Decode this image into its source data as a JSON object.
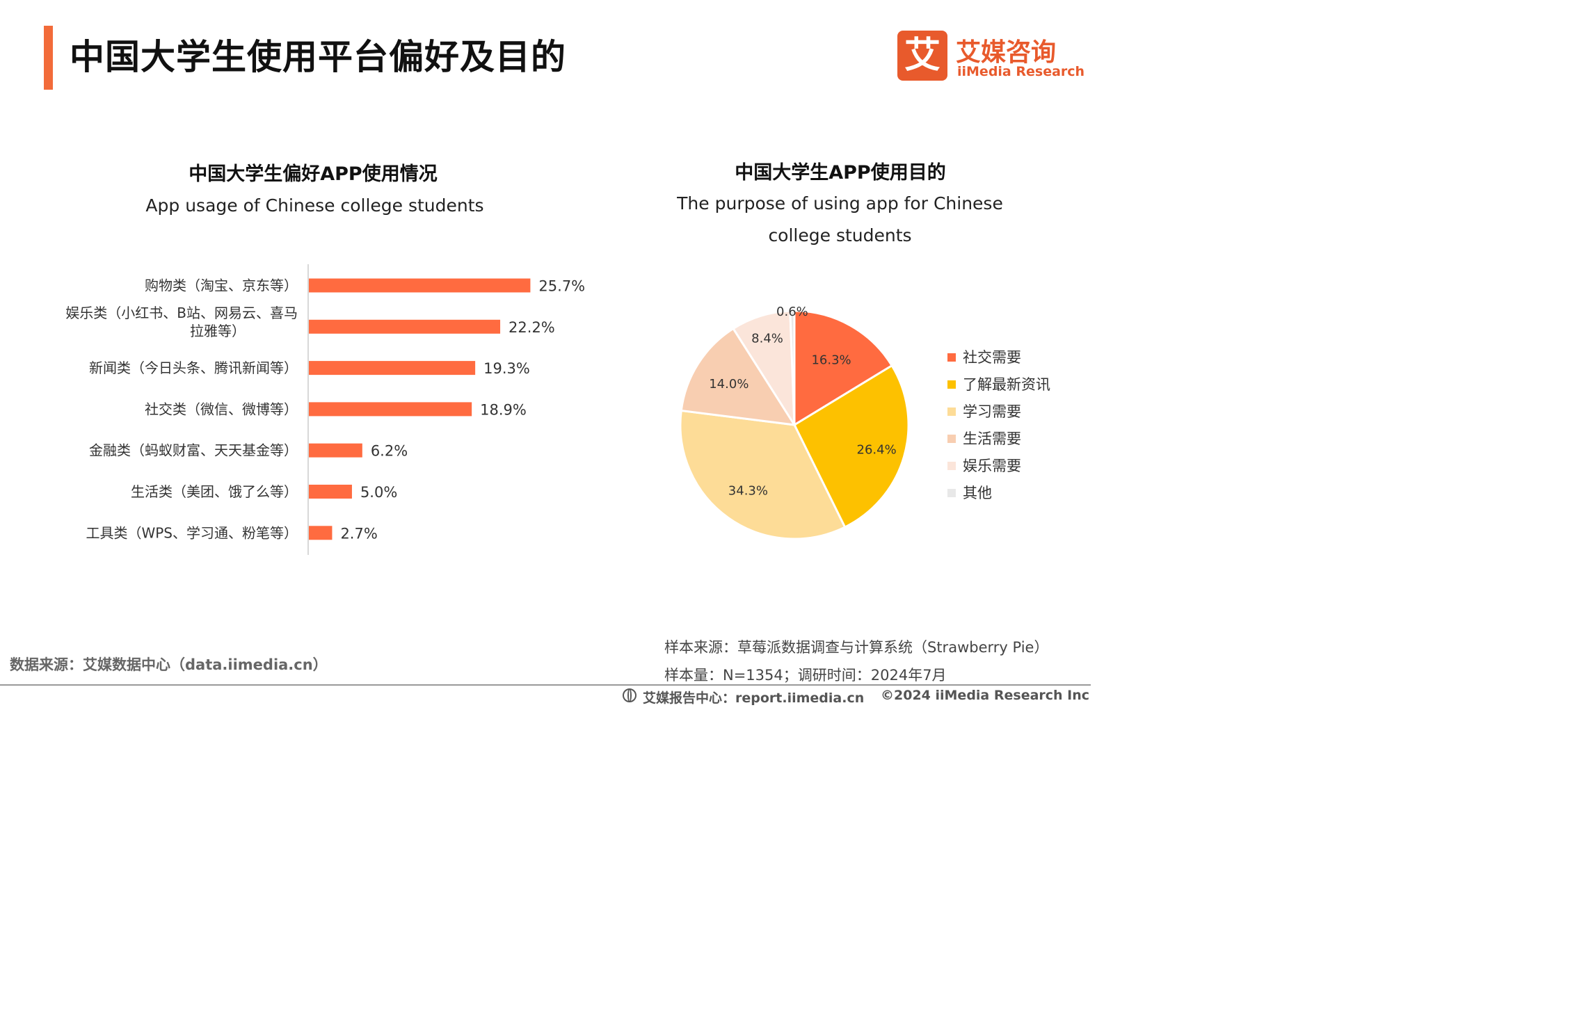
{
  "header": {
    "title": "中国大学生使用平台偏好及目的"
  },
  "logo": {
    "mark": "艾",
    "name_cn": "艾媒咨询",
    "name_en": "iiMedia Research"
  },
  "charts": {
    "left": {
      "title_cn": "中国大学生偏好APP使用情况",
      "title_en": "App usage of Chinese college students"
    },
    "right": {
      "title_cn": "中国大学生APP使用目的",
      "title_en": "The purpose of using app for Chinese college students"
    }
  },
  "chart_data": [
    {
      "type": "bar",
      "orientation": "horizontal",
      "title": "中国大学生偏好APP使用情况",
      "subtitle": "App usage of Chinese college students",
      "categories": [
        "购物类（淘宝、京东等）",
        "娱乐类（小红书、B站、网易云、喜马拉雅等）",
        "新闻类（今日头条、腾讯新闻等）",
        "社交类（微信、微博等）",
        "金融类（蚂蚁财富、天天基金等）",
        "生活类（美团、饿了么等）",
        "工具类（WPS、学习通、粉笔等）"
      ],
      "category_lines": [
        [
          "购物类（淘宝、京东等）"
        ],
        [
          "娱乐类（小红书、B站、网易云、喜马",
          "拉雅等）"
        ],
        [
          "新闻类（今日头条、腾讯新闻等）"
        ],
        [
          "社交类（微信、微博等）"
        ],
        [
          "金融类（蚂蚁财富、天天基金等）"
        ],
        [
          "生活类（美团、饿了么等）"
        ],
        [
          "工具类（WPS、学习通、粉笔等）"
        ]
      ],
      "values": [
        25.7,
        22.2,
        19.3,
        18.9,
        6.2,
        5.0,
        2.7
      ],
      "labels": [
        "25.7%",
        "22.2%",
        "19.3%",
        "18.9%",
        "6.2%",
        "5.0%",
        "2.7%"
      ],
      "color": "#ff6b40",
      "grid": false
    },
    {
      "type": "pie",
      "title": "中国大学生APP使用目的",
      "subtitle": "The purpose of using app for Chinese college students",
      "categories": [
        "社交需要",
        "了解最新资讯",
        "学习需要",
        "生活需要",
        "娱乐需要",
        "其他"
      ],
      "values": [
        16.3,
        26.4,
        34.3,
        14.0,
        8.4,
        0.6
      ],
      "labels": [
        "16.3%",
        "26.4%",
        "34.3%",
        "14.0%",
        "8.4%",
        "0.6%"
      ],
      "colors": [
        "#ff6b40",
        "#fdc100",
        "#fddc97",
        "#f8ceb1",
        "#fbe5da",
        "#e8e8e8"
      ],
      "legend_position": "right"
    }
  ],
  "footer": {
    "data_source": "数据来源：艾媒数据中心（data.iimedia.cn）",
    "sample_source": "样本来源：草莓派数据调查与计算系统（Strawberry Pie）",
    "sample_size": "样本量：N=1354；调研时间：2024年7月",
    "report_center": "艾媒报告中心：report.iimedia.cn",
    "copyright": "©2024  iiMedia Research  Inc"
  }
}
